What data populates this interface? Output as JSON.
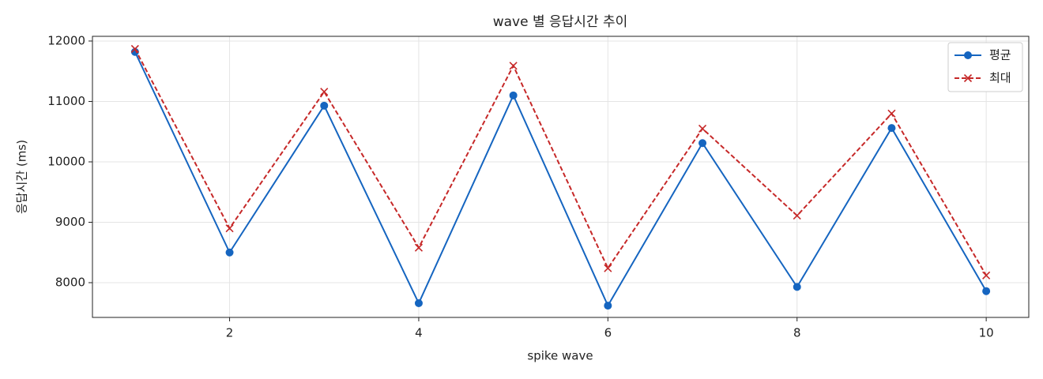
{
  "chart_data": {
    "type": "line",
    "title": "wave 별 응답시간 추이",
    "xlabel": "spike wave",
    "ylabel": "응답시간 (ms)",
    "x": [
      1,
      2,
      3,
      4,
      5,
      6,
      7,
      8,
      9,
      10
    ],
    "series": [
      {
        "name": "평균",
        "color": "#1565c0",
        "linestyle": "solid",
        "marker": "circle",
        "values": [
          11820,
          8500,
          10930,
          7660,
          11100,
          7620,
          10310,
          7930,
          10560,
          7860
        ]
      },
      {
        "name": "최대",
        "color": "#c62828",
        "linestyle": "dashed",
        "marker": "x",
        "values": [
          11870,
          8900,
          11160,
          8580,
          11590,
          8240,
          10550,
          9110,
          10800,
          8120
        ]
      }
    ],
    "xlim": [
      0.55,
      10.45
    ],
    "ylim": [
      7425,
      12078
    ],
    "xticks": [
      2,
      4,
      6,
      8,
      10
    ],
    "yticks": [
      8000,
      9000,
      10000,
      11000,
      12000
    ],
    "grid": true,
    "legend": "upper right"
  }
}
